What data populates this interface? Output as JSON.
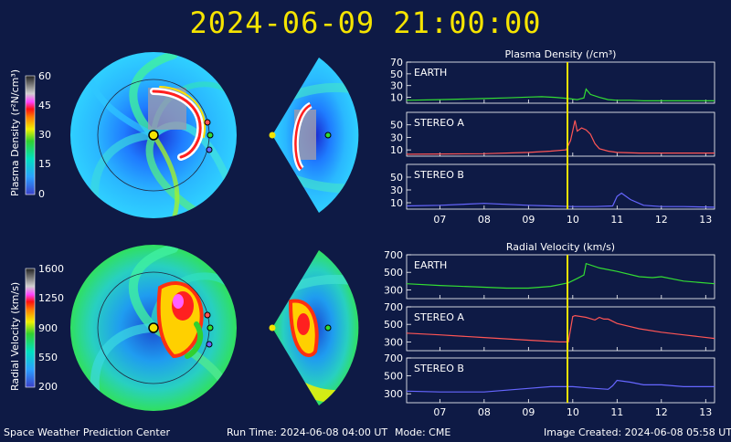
{
  "header": {
    "timestamp": "2024-06-09  21:00:00"
  },
  "colorbars": [
    {
      "label": "Plasma Density (r²N/cm³)",
      "ticks": [
        "60",
        "45",
        "30",
        "15",
        "0"
      ]
    },
    {
      "label": "Radial Velocity (km/s)",
      "ticks": [
        "1600",
        "1250",
        "900",
        "550",
        "200"
      ]
    }
  ],
  "footer": {
    "org": "Space Weather Prediction Center",
    "run_time": "Run Time: 2024-06-08 04:00 UT",
    "mode": "Mode: CME",
    "created": "Image Created: 2024-06-08 05:58 UT"
  },
  "colors": {
    "earth": "#33dd33",
    "stereo_a": "#ff5555",
    "stereo_b": "#6666ff",
    "now_line": "#f5e400",
    "sun": "#f5e400"
  },
  "chart_data": [
    {
      "type": "line",
      "title": "Plasma Density (/cm³)",
      "xlim": [
        6.25,
        13.2
      ],
      "x_ticks": [
        "07",
        "08",
        "09",
        "10",
        "11",
        "12",
        "13"
      ],
      "now_x": 9.88,
      "panels": [
        {
          "name": "EARTH",
          "ylim": [
            0,
            70
          ],
          "y_ticks": [
            "70",
            "50",
            "30",
            "10"
          ],
          "series_color": "earth",
          "x": [
            6.25,
            7,
            7.5,
            8,
            8.5,
            9,
            9.3,
            9.6,
            9.9,
            10.1,
            10.25,
            10.3,
            10.4,
            10.6,
            10.8,
            11,
            11.3,
            11.6,
            12,
            12.5,
            13.2
          ],
          "y": [
            5,
            6,
            7,
            8,
            9,
            10.5,
            11,
            10,
            8,
            6,
            9,
            24,
            15,
            10,
            6,
            5,
            5,
            4,
            4,
            4,
            4
          ]
        },
        {
          "name": "STEREO A",
          "ylim": [
            0,
            70
          ],
          "y_ticks": [
            "50",
            "30",
            "10"
          ],
          "series_color": "stereo_a",
          "x": [
            6.25,
            7,
            8,
            9,
            9.5,
            9.85,
            9.95,
            10.05,
            10.1,
            10.2,
            10.3,
            10.4,
            10.5,
            10.6,
            10.8,
            11,
            11.5,
            12,
            13.2
          ],
          "y": [
            3,
            3.5,
            4,
            6,
            8,
            10,
            25,
            57,
            40,
            45,
            42,
            35,
            20,
            12,
            8,
            6,
            5,
            5,
            5
          ]
        },
        {
          "name": "STEREO B",
          "ylim": [
            0,
            70
          ],
          "y_ticks": [
            "50",
            "30",
            "10"
          ],
          "series_color": "stereo_b",
          "x": [
            6.25,
            7,
            8,
            9,
            9.5,
            10,
            10.5,
            10.9,
            11,
            11.1,
            11.3,
            11.6,
            12,
            12.5,
            13.2
          ],
          "y": [
            5,
            6,
            9,
            6,
            5,
            4,
            4,
            5,
            20,
            25,
            15,
            6,
            4,
            4,
            3
          ]
        }
      ]
    },
    {
      "type": "line",
      "title": "Radial Velocity (km/s)",
      "xlim": [
        6.25,
        13.2
      ],
      "x_ticks": [
        "07",
        "08",
        "09",
        "10",
        "11",
        "12",
        "13"
      ],
      "now_x": 9.88,
      "panels": [
        {
          "name": "EARTH",
          "ylim": [
            200,
            700
          ],
          "y_ticks": [
            "700",
            "500",
            "300"
          ],
          "series_color": "earth",
          "x": [
            6.25,
            7,
            8,
            8.5,
            9,
            9.5,
            9.9,
            10.1,
            10.25,
            10.3,
            10.6,
            11,
            11.5,
            11.8,
            12,
            12.5,
            13.2
          ],
          "y": [
            370,
            350,
            330,
            320,
            320,
            340,
            380,
            430,
            470,
            600,
            550,
            510,
            450,
            440,
            450,
            400,
            370
          ]
        },
        {
          "name": "STEREO A",
          "ylim": [
            200,
            700
          ],
          "y_ticks": [
            "700",
            "500",
            "300"
          ],
          "series_color": "stereo_a",
          "x": [
            6.25,
            7,
            8,
            9,
            9.7,
            9.9,
            10.0,
            10.05,
            10.3,
            10.5,
            10.6,
            10.7,
            10.8,
            11,
            11.5,
            12,
            12.5,
            13.2
          ],
          "y": [
            400,
            380,
            350,
            320,
            300,
            300,
            590,
            600,
            580,
            550,
            580,
            560,
            560,
            510,
            450,
            410,
            380,
            340
          ]
        },
        {
          "name": "STEREO B",
          "ylim": [
            200,
            700
          ],
          "y_ticks": [
            "700",
            "500",
            "300"
          ],
          "series_color": "stereo_b",
          "x": [
            6.25,
            7,
            8,
            9,
            9.5,
            10,
            10.5,
            10.8,
            10.9,
            11,
            11.3,
            11.6,
            12,
            12.5,
            13.2
          ],
          "y": [
            330,
            320,
            320,
            360,
            380,
            380,
            360,
            350,
            390,
            450,
            430,
            400,
            400,
            380,
            380
          ]
        }
      ]
    }
  ]
}
